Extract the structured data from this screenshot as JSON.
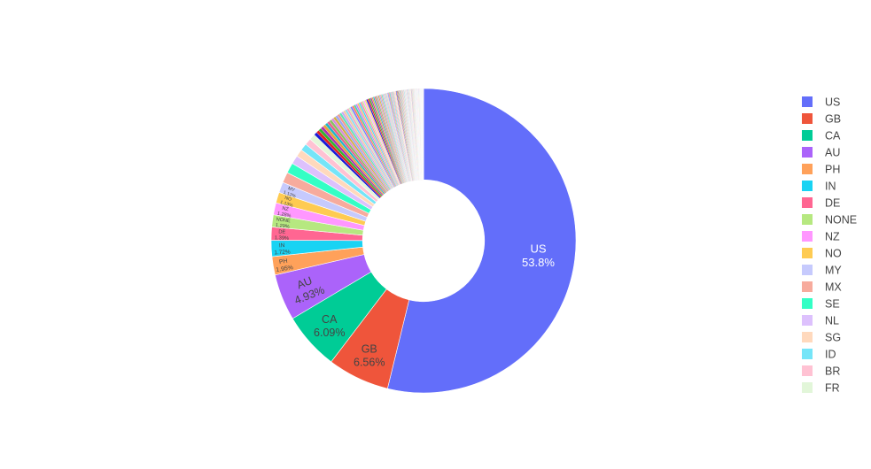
{
  "chart_data": {
    "type": "pie",
    "hole": 0.4,
    "legend_position": "right",
    "other_slices_count": 160,
    "labels": [
      "US",
      "GB",
      "CA",
      "AU",
      "PH",
      "IN",
      "DE",
      "NONE",
      "NZ",
      "NO",
      "MY",
      "MX",
      "SE",
      "NL",
      "SG",
      "ID",
      "BR",
      "FR"
    ],
    "values": [
      53.8,
      6.56,
      6.09,
      4.93,
      1.95,
      1.72,
      1.39,
      1.29,
      1.28,
      1.13,
      1.12,
      1.12,
      1.1,
      0.9,
      0.8,
      0.75,
      0.7,
      0.65
    ],
    "slice_text": [
      "53.8%",
      "6.56%",
      "6.09%",
      "4.93%",
      "1.95%",
      "1.72%",
      "1.39%",
      "1.29%",
      "1.28%",
      "1.13%",
      "1.12%",
      "",
      "",
      "",
      "",
      "",
      "",
      ""
    ],
    "colors": [
      "#636efa",
      "#EF553B",
      "#00cc96",
      "#ab63fa",
      "#FFA15A",
      "#19d3f3",
      "#FF6692",
      "#B6E880",
      "#FF97FF",
      "#FECB52",
      "#c6cafd",
      "#f7ab9d",
      "#33ffc5",
      "#ddc1fd",
      "#ffd9bd",
      "#75e5f8",
      "#ffc2d3",
      "#e2f6d9"
    ],
    "label_text_colors": [
      "#ffffff",
      "#444444",
      "#444444",
      "#444444",
      "#444444",
      "#444444",
      "#444444",
      "#444444",
      "#444444",
      "#444444",
      "#444444",
      "#444444",
      "#444444",
      "#444444",
      "#444444",
      "#444444",
      "#444444",
      "#444444"
    ],
    "legend_text_color": "#444444",
    "extra_palette": [
      "#1a1ad6",
      "#e02020",
      "#2fb52f",
      "#b02fb0",
      "#e6a23c",
      "#20b6c8",
      "#e8608a",
      "#88c060",
      "#d88ad8",
      "#d0b040",
      "#9aa3f5",
      "#f29a8a",
      "#5ce6b8",
      "#c6a8f2",
      "#f5c8a4",
      "#88dcef",
      "#f5a8c0",
      "#cfe8c0",
      "#7b7bff",
      "#ff7b5c",
      "#40d6a8",
      "#c084ff",
      "#ffb870",
      "#4ad8f0",
      "#ff86a8",
      "#c4ee98",
      "#ffaaff",
      "#ffd870"
    ]
  }
}
